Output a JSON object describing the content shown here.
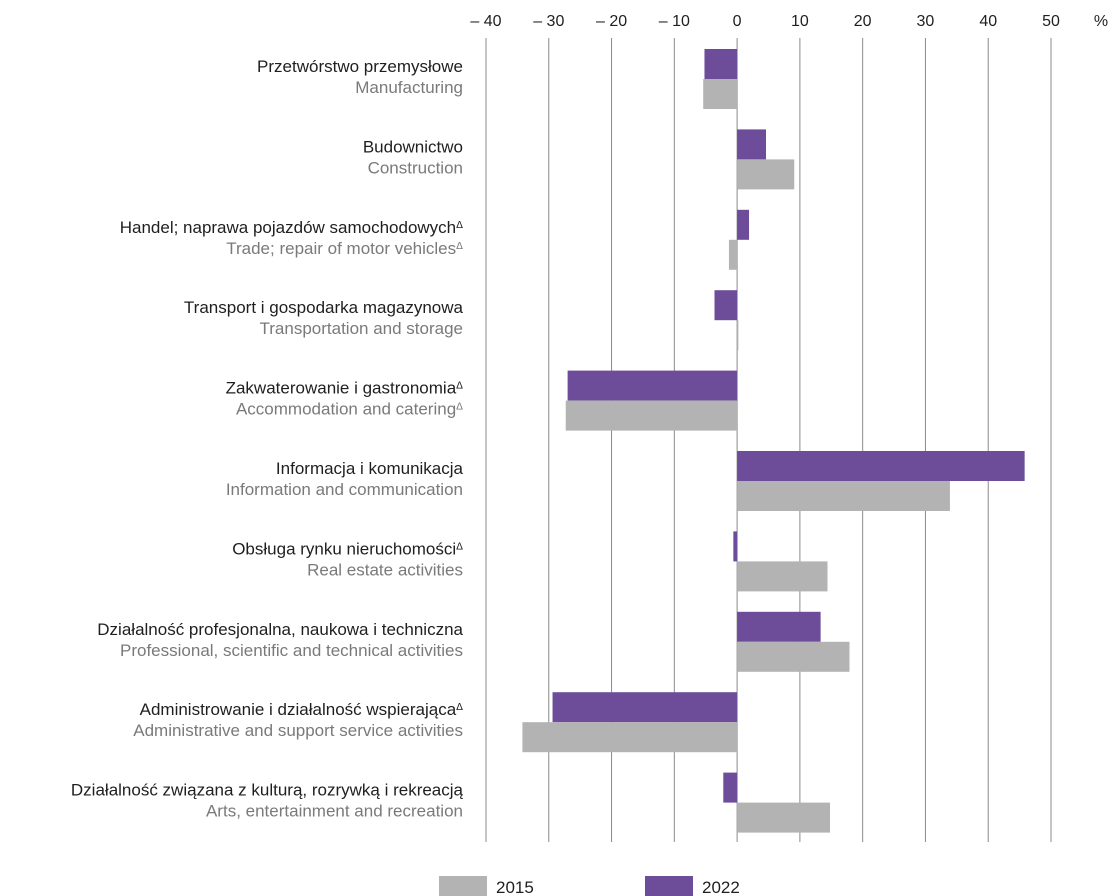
{
  "chart_data": {
    "type": "bar",
    "orientation": "horizontal",
    "unit": "%",
    "xlim": [
      -40,
      50
    ],
    "ticks": [
      "– 40",
      "– 30",
      "– 20",
      "– 10",
      "0",
      "10",
      "20",
      "30",
      "40",
      "50"
    ],
    "tick_values": [
      -40,
      -30,
      -20,
      -10,
      0,
      10,
      20,
      30,
      40,
      50
    ],
    "grid": true,
    "legend_position": "bottom",
    "categories": [
      {
        "pl": "Przetwórstwo przemysłowe",
        "en": "Manufacturing",
        "pl_mark": "",
        "en_mark": ""
      },
      {
        "pl": "Budownictwo",
        "en": "Construction",
        "pl_mark": "",
        "en_mark": ""
      },
      {
        "pl": "Handel; naprawa pojazdów samochodowych",
        "en": "Trade; repair of motor vehicles",
        "pl_mark": "Δ",
        "en_mark": "Δ"
      },
      {
        "pl": "Transport i gospodarka magazynowa",
        "en": "Transportation and storage",
        "pl_mark": "",
        "en_mark": ""
      },
      {
        "pl": "Zakwaterowanie i gastronomia",
        "en": "Accommodation and catering",
        "pl_mark": "Δ",
        "en_mark": "Δ"
      },
      {
        "pl": "Informacja i komunikacja",
        "en": "Information and communication",
        "pl_mark": "",
        "en_mark": ""
      },
      {
        "pl": "Obsługa rynku nieruchomości",
        "en": "Real estate activities",
        "pl_mark": "Δ",
        "en_mark": ""
      },
      {
        "pl": "Działalność profesjonalna, naukowa i techniczna",
        "en": "Professional, scientific and technical activities",
        "pl_mark": "",
        "en_mark": ""
      },
      {
        "pl": "Administrowanie i działalność wspierająca",
        "en": "Administrative and support service activities",
        "pl_mark": "Δ",
        "en_mark": ""
      },
      {
        "pl": "Działalność związana z kulturą, rozrywką i rekreacją",
        "en": "Arts, entertainment and recreation",
        "pl_mark": "",
        "en_mark": ""
      }
    ],
    "series": [
      {
        "name": "2022",
        "color": "#6d4c99",
        "values": [
          -5.2,
          4.6,
          1.9,
          -3.6,
          -27,
          45.8,
          -0.6,
          13.3,
          -29.4,
          -2.2
        ]
      },
      {
        "name": "2015",
        "color": "#b3b3b3",
        "values": [
          -5.4,
          9.1,
          -1.3,
          0.2,
          -27.3,
          33.9,
          14.4,
          17.9,
          -34.2,
          14.8
        ]
      }
    ],
    "legend": [
      {
        "name": "2015",
        "color": "#b3b3b3"
      },
      {
        "name": "2022",
        "color": "#6d4c99"
      }
    ]
  }
}
